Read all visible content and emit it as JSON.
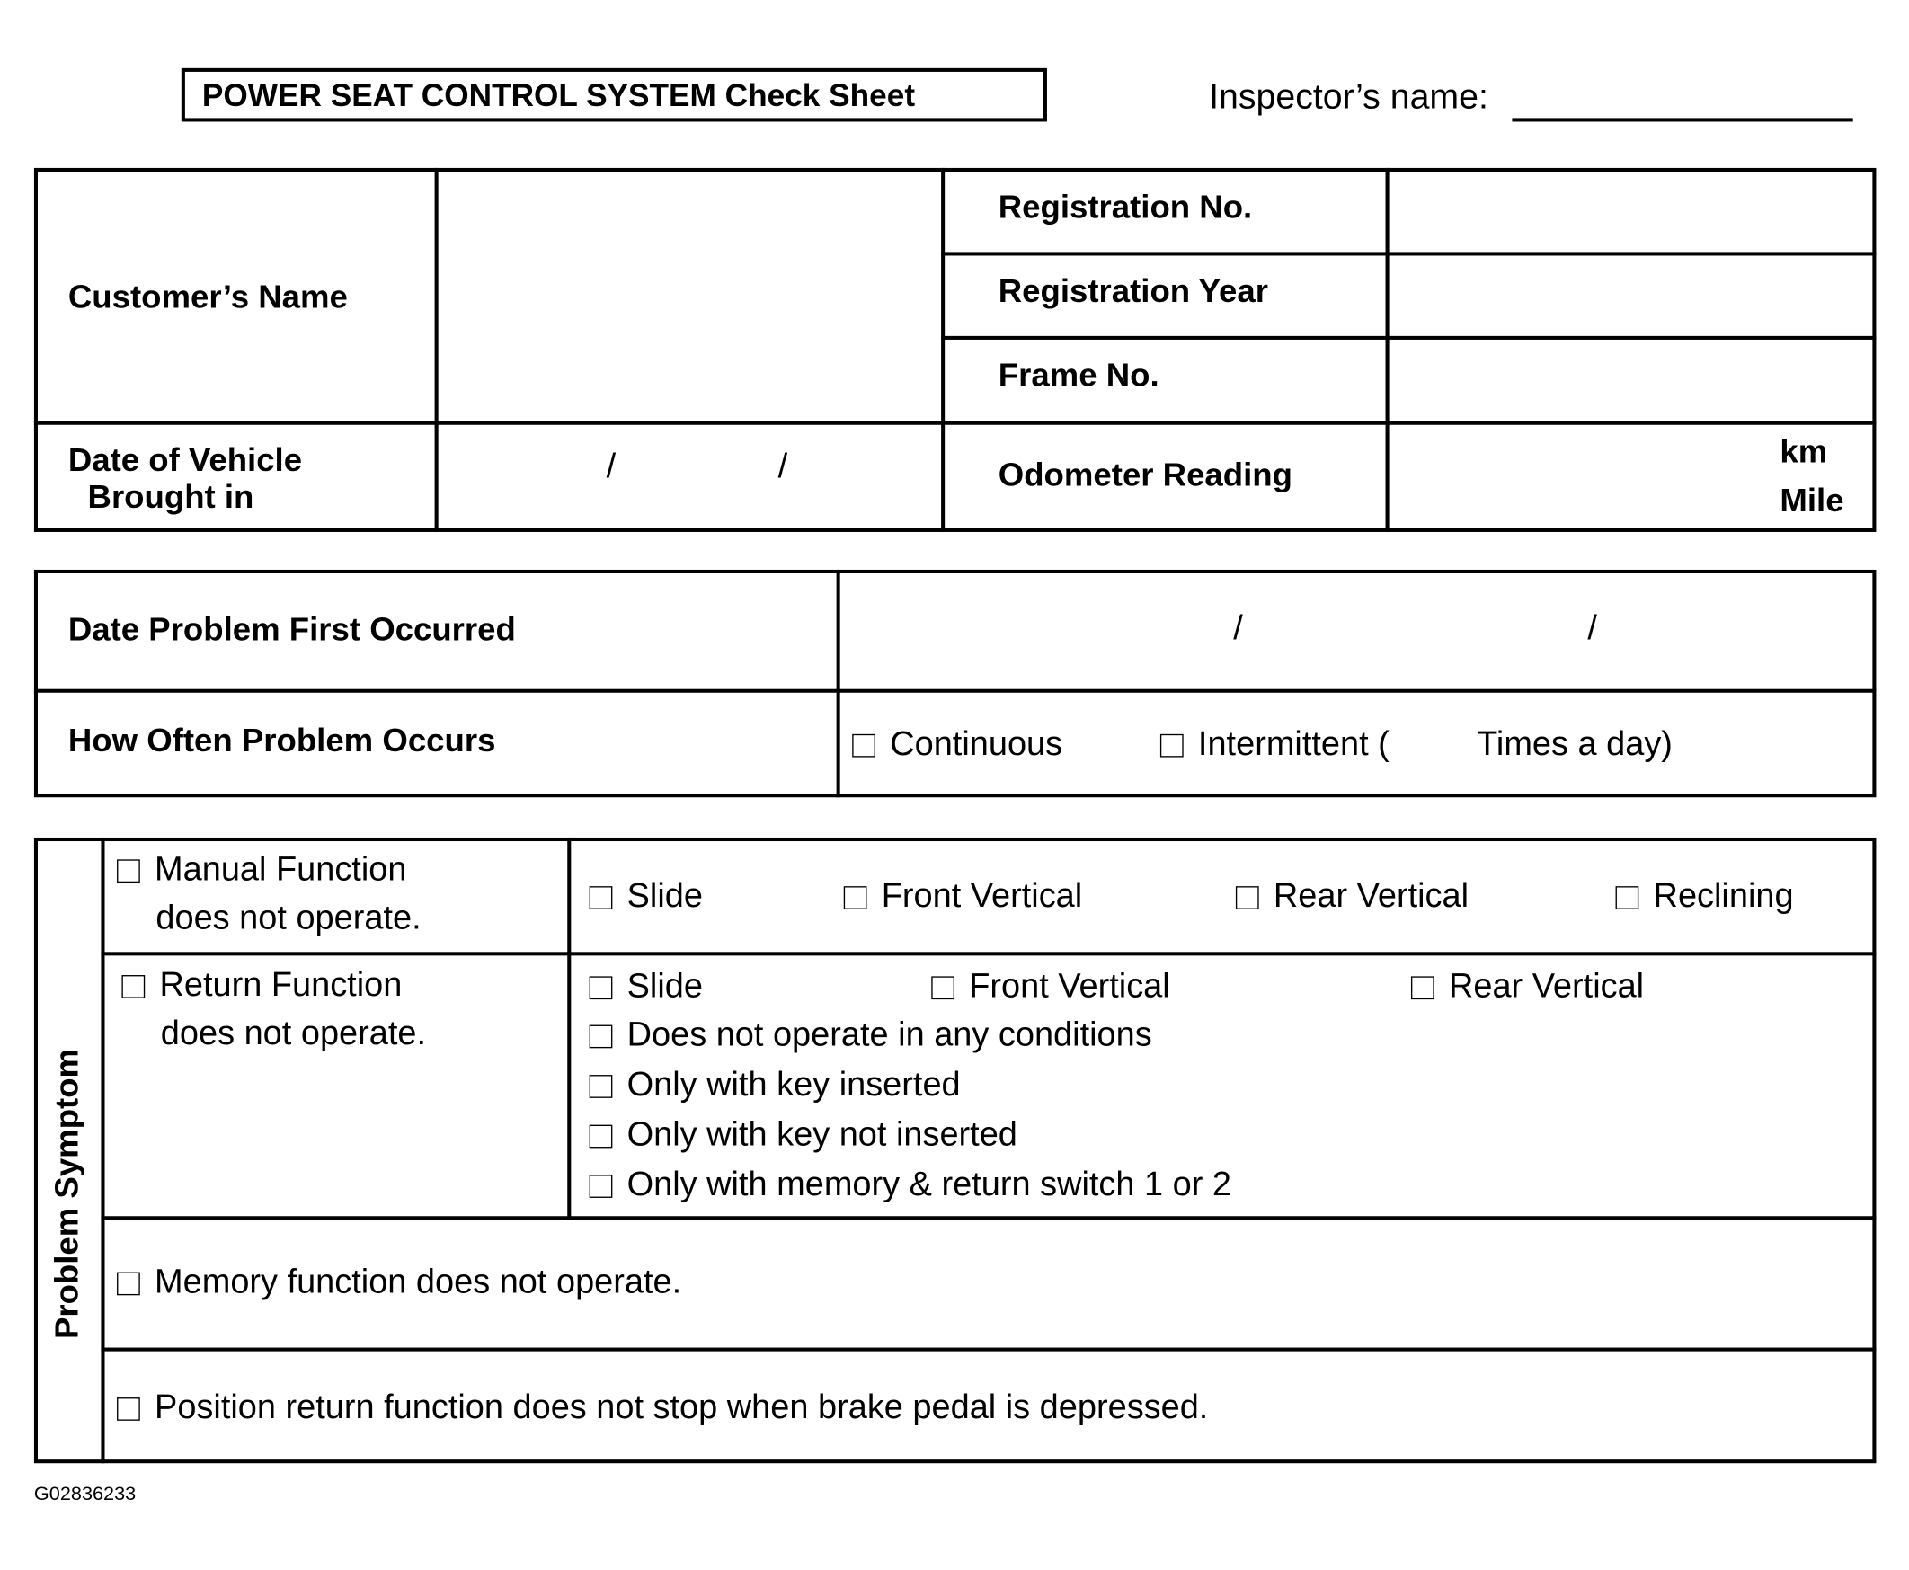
{
  "header": {
    "title": "POWER SEAT CONTROL SYSTEM Check Sheet",
    "inspector_label": "Inspector’s name:"
  },
  "vehicle": {
    "customer_name": "Customer’s Name",
    "registration_no": "Registration No.",
    "registration_year": "Registration Year",
    "frame_no": "Frame No.",
    "date_brought_line1": "Date of Vehicle",
    "date_brought_line2": "Brought in",
    "date_sep": "/",
    "odometer": "Odometer Reading",
    "unit_km": "km",
    "unit_mile": "Mile"
  },
  "problem": {
    "date_first": "Date Problem First Occurred",
    "date_sep": "/",
    "how_often": "How Often Problem Occurs",
    "continuous": "Continuous",
    "intermittent": "Intermittent (",
    "times_a_day": "Times a day)"
  },
  "symptom": {
    "section_label": "Problem Symptom",
    "manual_line1": "Manual Function",
    "manual_line2": "does not operate.",
    "manual_options": [
      "Slide",
      "Front Vertical",
      "Rear Vertical",
      "Reclining"
    ],
    "return_line1": "Return Function",
    "return_line2": "does not operate.",
    "return_options": [
      "Slide",
      "Front Vertical",
      "Rear Vertical"
    ],
    "return_conditions": [
      "Does not operate in any conditions",
      "Only with key inserted",
      "Only with key not inserted",
      "Only with memory & return switch 1 or 2"
    ],
    "memory": "Memory function does not operate.",
    "position_return": "Position return function does not stop when brake pedal is depressed."
  },
  "footer": {
    "figure_id": "G02836233"
  }
}
